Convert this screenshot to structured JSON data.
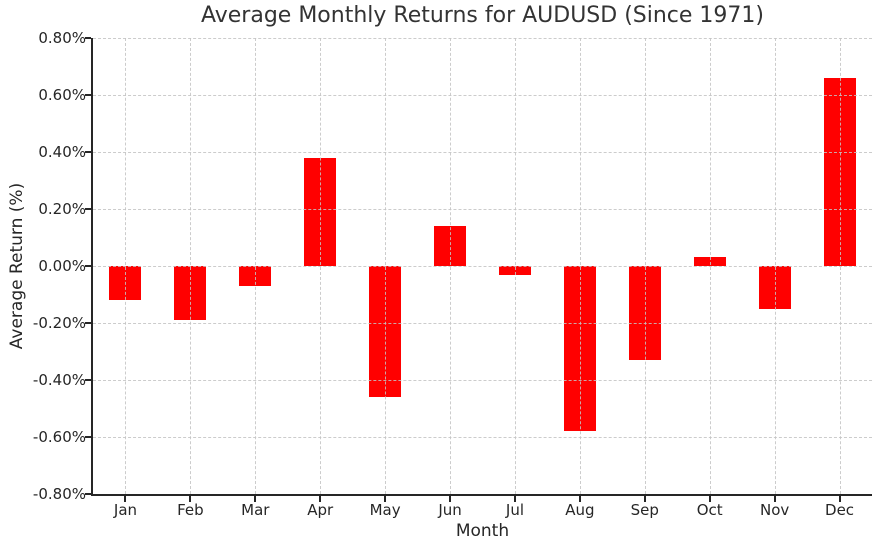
{
  "chart_data": {
    "type": "bar",
    "title": "Average Monthly Returns for AUDUSD (Since 1971)",
    "xlabel": "Month",
    "ylabel": "Average Return (%)",
    "categories": [
      "Jan",
      "Feb",
      "Mar",
      "Apr",
      "May",
      "Jun",
      "Jul",
      "Aug",
      "Sep",
      "Oct",
      "Nov",
      "Dec"
    ],
    "values": [
      -0.12,
      -0.19,
      -0.07,
      0.38,
      -0.46,
      0.14,
      -0.03,
      -0.58,
      -0.33,
      0.03,
      -0.15,
      0.66
    ],
    "value_unit": "percent",
    "ylim": [
      -0.8,
      0.8
    ],
    "yticks": [
      0.8,
      0.6,
      0.4,
      0.2,
      0.0,
      -0.2,
      -0.4,
      -0.6,
      -0.8
    ],
    "ytick_labels": [
      "0.80%",
      "0.60%",
      "0.40%",
      "0.20%",
      "0.00%",
      "-0.20%",
      "-0.40%",
      "-0.60%",
      "-0.80%"
    ],
    "grid": true,
    "grid_style": "dashed",
    "legend": "none",
    "colors": {
      "bar": "#ff0000",
      "grid": "#c9c9c9",
      "axis": "#262626",
      "tick_text": "#262626",
      "title_text": "#333333",
      "background": "#ffffff"
    }
  }
}
